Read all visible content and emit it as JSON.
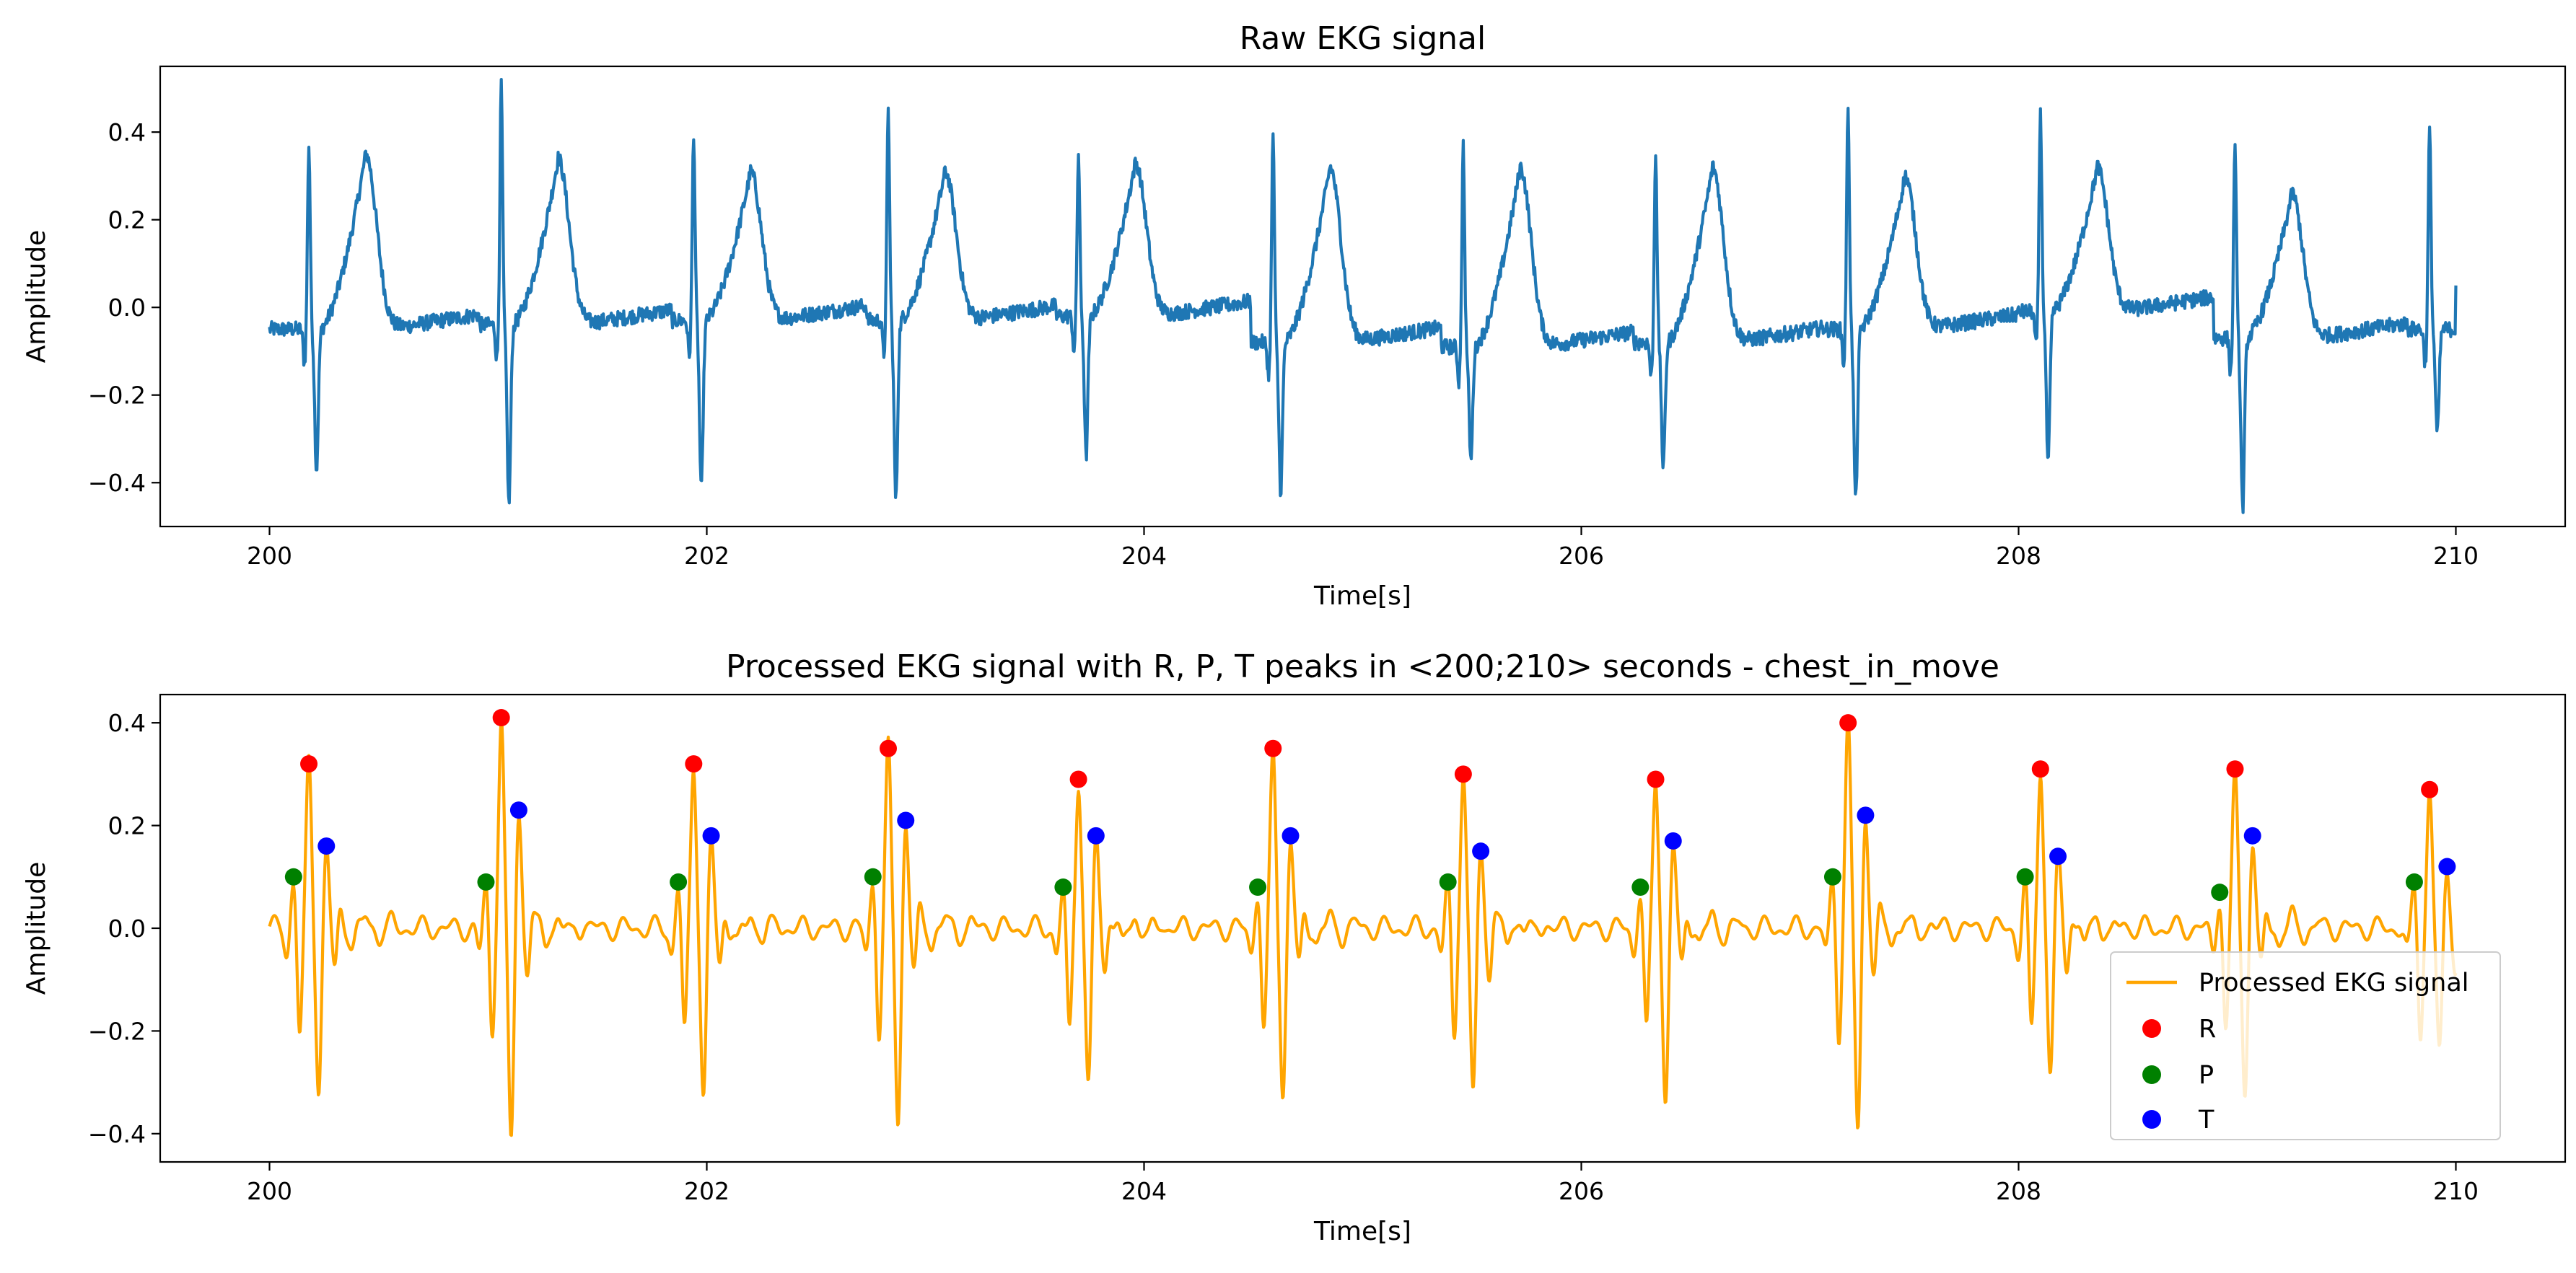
{
  "chart_data": [
    {
      "type": "line",
      "title": "Raw EKG signal",
      "xlabel": "Time[s]",
      "ylabel": "Amplitude",
      "xlim": [
        199.5,
        210.5
      ],
      "ylim": [
        -0.5,
        0.55
      ],
      "xticks": [
        200,
        202,
        204,
        206,
        208,
        210
      ],
      "yticks": [
        -0.4,
        -0.2,
        0.0,
        0.2,
        0.4
      ],
      "xtick_labels": [
        "200",
        "202",
        "204",
        "206",
        "208",
        "210"
      ],
      "ytick_labels": [
        "−0.4",
        "−0.2",
        "0.0",
        "0.2",
        "0.4"
      ],
      "grid": false,
      "legend": null,
      "color": "#1f77b4",
      "heart_rate_bpm": 69,
      "beats": [
        {
          "r": 200.18,
          "p": 0.37,
          "s": -0.37,
          "t": 0.35,
          "base": -0.05
        },
        {
          "r": 201.06,
          "p": 0.51,
          "s": -0.45,
          "t": 0.34,
          "base": -0.04
        },
        {
          "r": 201.94,
          "p": 0.4,
          "s": -0.42,
          "t": 0.31,
          "base": -0.03
        },
        {
          "r": 202.83,
          "p": 0.45,
          "s": -0.44,
          "t": 0.31,
          "base": -0.03
        },
        {
          "r": 203.7,
          "p": 0.35,
          "s": -0.34,
          "t": 0.33,
          "base": -0.02
        },
        {
          "r": 204.59,
          "p": 0.4,
          "s": -0.42,
          "t": 0.32,
          "base": -0.08
        },
        {
          "r": 205.46,
          "p": 0.37,
          "s": -0.35,
          "t": 0.32,
          "base": -0.09
        },
        {
          "r": 206.34,
          "p": 0.36,
          "s": -0.37,
          "t": 0.32,
          "base": -0.08
        },
        {
          "r": 207.22,
          "p": 0.46,
          "s": -0.44,
          "t": 0.3,
          "base": -0.05
        },
        {
          "r": 208.1,
          "p": 0.45,
          "s": -0.36,
          "t": 0.32,
          "base": -0.01
        },
        {
          "r": 208.99,
          "p": 0.38,
          "s": -0.46,
          "t": 0.26,
          "base": -0.07
        },
        {
          "r": 209.88,
          "p": 0.41,
          "s": -0.29,
          "t": 0.0,
          "base": -0.05
        }
      ],
      "end": {
        "x": 210.0,
        "y": 0.05
      }
    },
    {
      "type": "line+scatter",
      "title": "Processed EKG signal with R, P, T peaks in <200;210> seconds - chest_in_move",
      "xlabel": "Time[s]",
      "ylabel": "Amplitude",
      "xlim": [
        199.5,
        210.5
      ],
      "ylim": [
        -0.455,
        0.455
      ],
      "xticks": [
        200,
        202,
        204,
        206,
        208,
        210
      ],
      "yticks": [
        -0.4,
        -0.2,
        0.0,
        0.2,
        0.4
      ],
      "xtick_labels": [
        "200",
        "202",
        "204",
        "206",
        "208",
        "210"
      ],
      "ytick_labels": [
        "−0.4",
        "−0.2",
        "0.0",
        "0.2",
        "0.4"
      ],
      "grid": false,
      "legend_position": "lower-right",
      "series": [
        {
          "name": "Processed EKG signal",
          "kind": "line",
          "color": "#ffa500"
        },
        {
          "name": "R",
          "kind": "scatter",
          "color": "#ff0000",
          "points": [
            [
              200.18,
              0.32
            ],
            [
              201.06,
              0.41
            ],
            [
              201.94,
              0.32
            ],
            [
              202.83,
              0.35
            ],
            [
              203.7,
              0.29
            ],
            [
              204.59,
              0.35
            ],
            [
              205.46,
              0.3
            ],
            [
              206.34,
              0.29
            ],
            [
              207.22,
              0.4
            ],
            [
              208.1,
              0.31
            ],
            [
              208.99,
              0.31
            ],
            [
              209.88,
              0.27
            ]
          ]
        },
        {
          "name": "P",
          "kind": "scatter",
          "color": "#008000",
          "points": [
            [
              200.11,
              0.1
            ],
            [
              200.99,
              0.09
            ],
            [
              201.87,
              0.09
            ],
            [
              202.76,
              0.1
            ],
            [
              203.63,
              0.08
            ],
            [
              204.52,
              0.08
            ],
            [
              205.39,
              0.09
            ],
            [
              206.27,
              0.08
            ],
            [
              207.15,
              0.1
            ],
            [
              208.03,
              0.1
            ],
            [
              208.92,
              0.07
            ],
            [
              209.81,
              0.09
            ]
          ]
        },
        {
          "name": "T",
          "kind": "scatter",
          "color": "#0000ff",
          "points": [
            [
              200.26,
              0.16
            ],
            [
              201.14,
              0.23
            ],
            [
              202.02,
              0.18
            ],
            [
              202.91,
              0.21
            ],
            [
              203.78,
              0.18
            ],
            [
              204.67,
              0.18
            ],
            [
              205.54,
              0.15
            ],
            [
              206.42,
              0.17
            ],
            [
              207.3,
              0.22
            ],
            [
              208.18,
              0.14
            ],
            [
              209.07,
              0.18
            ],
            [
              209.96,
              0.12
            ]
          ]
        }
      ],
      "s_troughs": [
        -0.31,
        -0.42,
        -0.33,
        -0.38,
        -0.31,
        -0.33,
        -0.32,
        -0.34,
        -0.4,
        -0.28,
        -0.33,
        -0.25
      ]
    }
  ]
}
